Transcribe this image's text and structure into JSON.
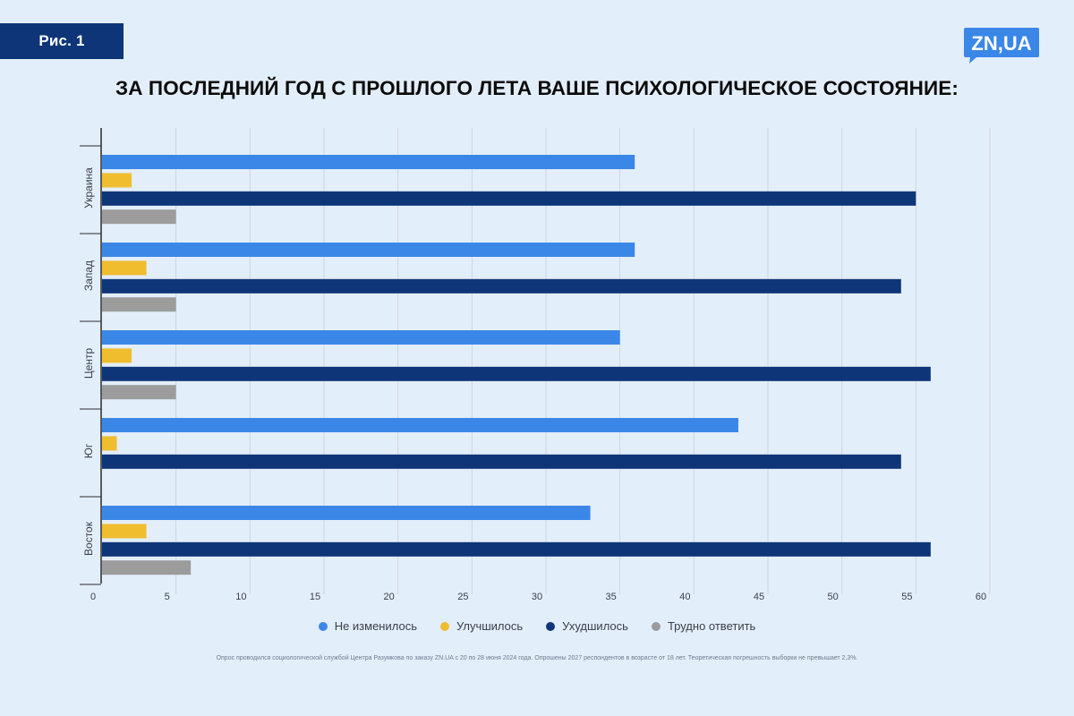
{
  "header": {
    "figure_label": "Рис. 1",
    "logo_text": "ZN,UA",
    "title": "ЗА ПОСЛЕДНИЙ ГОД С ПРОШЛОГО ЛЕТА ВАШЕ ПСИХОЛОГИЧЕСКОЕ СОСТОЯНИЕ:"
  },
  "chart_data": {
    "type": "bar",
    "orientation": "horizontal",
    "categories": [
      "Украина",
      "Запад",
      "Центр",
      "Юг",
      "Восток"
    ],
    "series": [
      {
        "name": "Не изменилось",
        "color": "#3a87e8",
        "values": [
          36,
          36,
          35,
          43,
          33
        ]
      },
      {
        "name": "Улучшилось",
        "color": "#f0bd2f",
        "values": [
          2,
          3,
          2,
          1,
          3
        ]
      },
      {
        "name": "Ухудшилось",
        "color": "#0e3577",
        "values": [
          55,
          54,
          56,
          54,
          56
        ]
      },
      {
        "name": "Трудно ответить",
        "color": "#9c9c9c",
        "values": [
          5,
          5,
          5,
          0,
          6
        ]
      }
    ],
    "xlim": [
      0,
      60
    ],
    "xticks": [
      "0",
      "5",
      "10",
      "15",
      "20",
      "25",
      "30",
      "35",
      "40",
      "45",
      "50",
      "55",
      "60"
    ],
    "grid": true,
    "legend_position": "bottom"
  },
  "footnote": "Опрос проводился социологической службой Центра Разумкова по заказу ZN.UA с 20 по 28 июня 2024 года. Опрошены 2027 респондентов в возрасте от 18 лет. Теоретическая погрешность выборки не превышает 2,3%."
}
